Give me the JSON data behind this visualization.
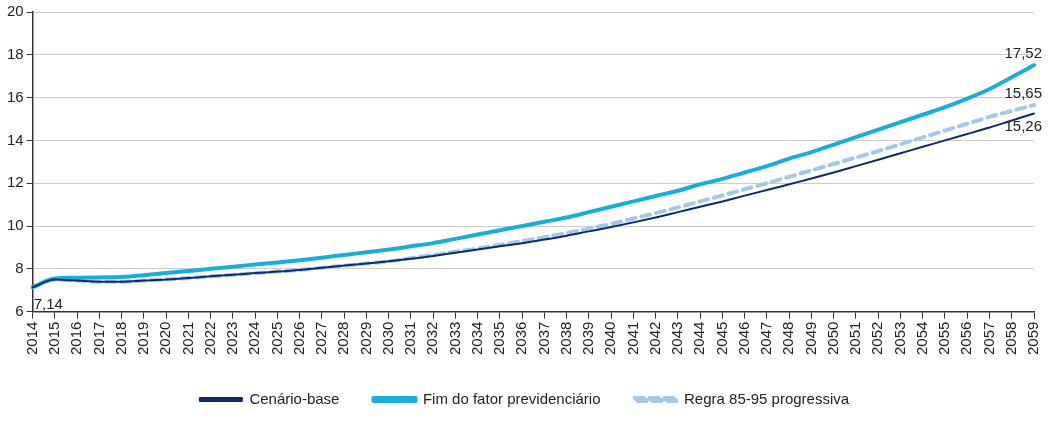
{
  "chart_data": {
    "type": "line",
    "categories": [
      "2014",
      "2015",
      "2016",
      "2017",
      "2018",
      "2019",
      "2020",
      "2021",
      "2022",
      "2023",
      "2024",
      "2025",
      "2026",
      "2027",
      "2028",
      "2029",
      "2030",
      "2031",
      "2032",
      "2033",
      "2034",
      "2035",
      "2036",
      "2037",
      "2038",
      "2039",
      "2040",
      "2041",
      "2042",
      "2043",
      "2044",
      "2045",
      "2046",
      "2047",
      "2048",
      "2049",
      "2050",
      "2051",
      "2052",
      "2053",
      "2054",
      "2055",
      "2056",
      "2057",
      "2058",
      "2059"
    ],
    "series": [
      {
        "name": "Cenário-base",
        "color": "#0d2a6e",
        "line_style": "solid",
        "values": [
          7.14,
          7.5,
          7.45,
          7.4,
          7.4,
          7.45,
          7.5,
          7.57,
          7.65,
          7.72,
          7.8,
          7.87,
          7.95,
          8.05,
          8.15,
          8.25,
          8.35,
          8.47,
          8.6,
          8.75,
          8.9,
          9.05,
          9.2,
          9.37,
          9.55,
          9.75,
          9.95,
          10.17,
          10.4,
          10.65,
          10.9,
          11.15,
          11.42,
          11.68,
          11.95,
          12.22,
          12.5,
          12.8,
          13.1,
          13.4,
          13.7,
          14.0,
          14.3,
          14.6,
          14.93,
          15.26
        ],
        "value_labels": [
          "7,14",
          null,
          null,
          null,
          null,
          null,
          null,
          null,
          null,
          null,
          null,
          null,
          null,
          null,
          null,
          null,
          null,
          null,
          null,
          null,
          null,
          null,
          null,
          null,
          null,
          null,
          null,
          null,
          null,
          null,
          null,
          null,
          null,
          null,
          null,
          null,
          null,
          null,
          null,
          null,
          null,
          null,
          null,
          null,
          null,
          "15,26"
        ]
      },
      {
        "name": "Fim do fator previdenciário",
        "color": "#1badd9",
        "line_style": "solid",
        "values": [
          7.14,
          7.55,
          7.58,
          7.6,
          7.62,
          7.7,
          7.8,
          7.9,
          8.0,
          8.1,
          8.2,
          8.3,
          8.4,
          8.52,
          8.65,
          8.77,
          8.9,
          9.05,
          9.2,
          9.4,
          9.6,
          9.8,
          10.0,
          10.2,
          10.4,
          10.65,
          10.9,
          11.15,
          11.4,
          11.65,
          11.95,
          12.2,
          12.5,
          12.8,
          13.15,
          13.45,
          13.8,
          14.15,
          14.5,
          14.85,
          15.2,
          15.55,
          15.95,
          16.4,
          16.95,
          17.52
        ],
        "value_labels": [
          null,
          null,
          null,
          null,
          null,
          null,
          null,
          null,
          null,
          null,
          null,
          null,
          null,
          null,
          null,
          null,
          null,
          null,
          null,
          null,
          null,
          null,
          null,
          null,
          null,
          null,
          null,
          null,
          null,
          null,
          null,
          null,
          null,
          null,
          null,
          null,
          null,
          null,
          null,
          null,
          null,
          null,
          null,
          null,
          null,
          "17,52"
        ]
      },
      {
        "name": "Regra 85-95 progressiva",
        "color": "#a3c8ea",
        "line_style": "dashed",
        "values": [
          7.14,
          7.5,
          7.45,
          7.4,
          7.4,
          7.45,
          7.5,
          7.57,
          7.65,
          7.72,
          7.8,
          7.87,
          7.95,
          8.05,
          8.15,
          8.25,
          8.35,
          8.5,
          8.65,
          8.8,
          8.95,
          9.12,
          9.3,
          9.48,
          9.67,
          9.88,
          10.1,
          10.35,
          10.6,
          10.87,
          11.15,
          11.43,
          11.72,
          12.0,
          12.3,
          12.6,
          12.9,
          13.2,
          13.5,
          13.82,
          14.14,
          14.46,
          14.78,
          15.1,
          15.38,
          15.65
        ],
        "value_labels": [
          null,
          null,
          null,
          null,
          null,
          null,
          null,
          null,
          null,
          null,
          null,
          null,
          null,
          null,
          null,
          null,
          null,
          null,
          null,
          null,
          null,
          null,
          null,
          null,
          null,
          null,
          null,
          null,
          null,
          null,
          null,
          null,
          null,
          null,
          null,
          null,
          null,
          null,
          null,
          null,
          null,
          null,
          null,
          null,
          null,
          "15,65"
        ]
      }
    ],
    "ylim": [
      6,
      20
    ],
    "yticks": [
      6,
      8,
      10,
      12,
      14,
      16,
      18,
      20
    ],
    "grid": "y",
    "legend": "bottom",
    "marker": "none"
  }
}
